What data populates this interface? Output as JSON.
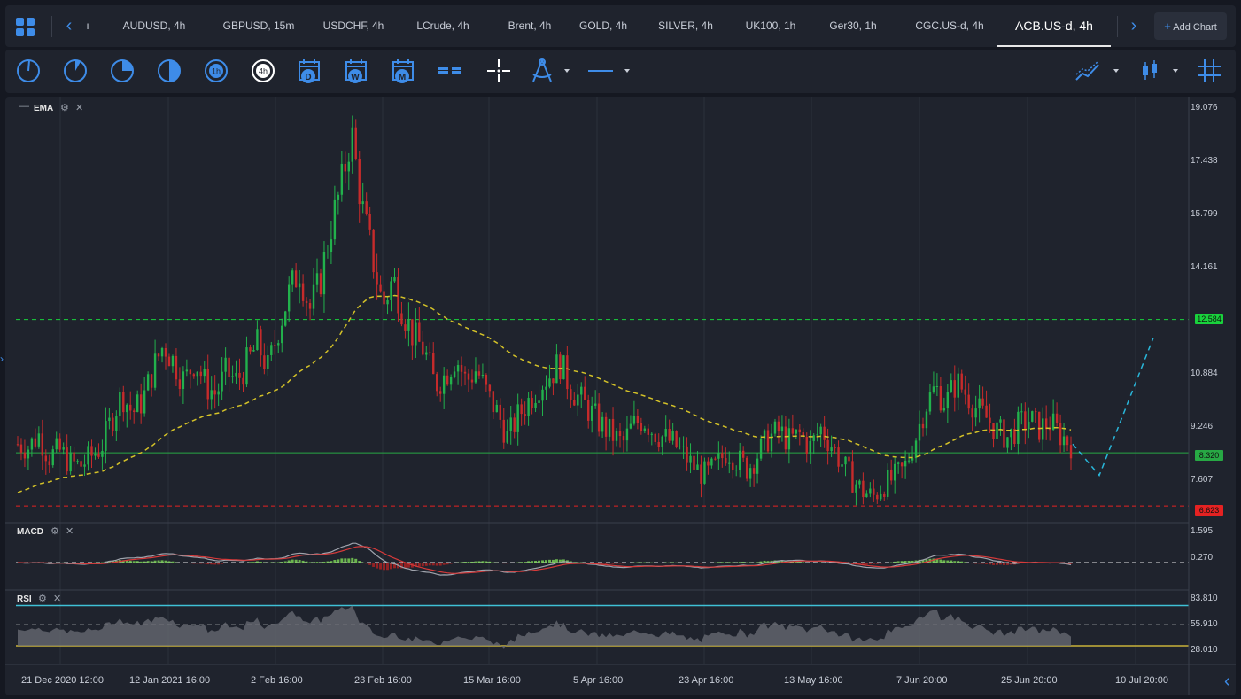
{
  "tabs": {
    "partial": "ı",
    "items": [
      "AUDUSD, 4h",
      "GBPUSD, 15m",
      "USDCHF, 4h",
      "LCrude, 4h",
      "Brent, 4h",
      "GOLD, 4h",
      "SILVER, 4h",
      "UK100, 1h",
      "Ger30, 1h",
      "CGC.US-d, 4h",
      "ACB.US-d, 4h"
    ],
    "active": "ACB.US-d, 4h",
    "add_chart_label": "Add Chart",
    "add_chart_symbol": "+"
  },
  "toolbar": {
    "timeframe_tools": [
      "1m-icon",
      "5m-icon",
      "15m-icon",
      "30m-icon",
      "1h-icon",
      "4h-icon"
    ],
    "labels": {
      "h1": "1h",
      "h4": "4h",
      "day": "D",
      "week": "W",
      "month": "M"
    }
  },
  "indicators": {
    "main": {
      "name": "EMA"
    },
    "macd": {
      "name": "MACD"
    },
    "rsi": {
      "name": "RSI"
    }
  },
  "yaxis": {
    "main": [
      "19.076",
      "17.438",
      "15.799",
      "14.161",
      "10.884",
      "9.246",
      "7.607"
    ],
    "macd": [
      "1.595",
      "0.270"
    ],
    "rsi": [
      "83.810",
      "55.910",
      "28.010"
    ]
  },
  "price_tags": [
    {
      "value": "12.584",
      "color": "#19d23c"
    },
    {
      "value": "8.320",
      "color": "#27a844"
    },
    {
      "value": "6.623",
      "color": "#e52222"
    }
  ],
  "xaxis": [
    "21 Dec 2020 12:00",
    "12 Jan 2021 16:00",
    "2 Feb 16:00",
    "23 Feb 16:00",
    "15 Mar 16:00",
    "5 Apr 16:00",
    "23 Apr 16:00",
    "13 May 16:00",
    "7 Jun 20:00",
    "25 Jun 20:00",
    "10 Jul 20:00"
  ],
  "colors": {
    "up": "#22b14c",
    "down": "#c62b2b",
    "ema": "#d4c228",
    "projection": "#29b6d9",
    "accent": "#3e8ce8"
  },
  "chart_data": {
    "type": "candlestick",
    "title": "ACB.US-d, 4h",
    "ylim": [
      6.2,
      19.4
    ],
    "levels": [
      12.584,
      8.32,
      6.623
    ],
    "close_path": [
      8.6,
      8.5,
      8.9,
      8.2,
      8.4,
      8.0,
      7.9,
      8.2,
      8.5,
      9.4,
      10.2,
      9.6,
      10.0,
      11.0,
      11.8,
      11.2,
      10.6,
      11.3,
      10.5,
      10.2,
      10.9,
      10.6,
      11.2,
      11.8,
      11.0,
      12.3,
      13.4,
      14.2,
      12.9,
      13.8,
      15.5,
      16.8,
      18.6,
      16.2,
      14.6,
      13.0,
      13.9,
      12.8,
      12.0,
      11.6,
      10.5,
      10.8,
      11.4,
      10.6,
      11.0,
      10.2,
      9.6,
      8.8,
      9.5,
      10.0,
      10.5,
      10.8,
      11.2,
      10.4,
      10.0,
      9.6,
      9.2,
      8.9,
      8.6,
      9.2,
      9.4,
      9.0,
      8.8,
      8.6,
      8.2,
      7.8,
      7.6,
      7.9,
      8.4,
      8.1,
      7.8,
      8.3,
      8.8,
      9.0,
      8.7,
      8.9,
      8.5,
      9.1,
      8.6,
      8.0,
      7.5,
      7.1,
      6.9,
      7.3,
      7.5,
      7.8,
      8.7,
      9.8,
      10.4,
      9.9,
      10.6,
      10.2,
      9.7,
      9.4,
      9.0,
      8.8,
      9.2,
      9.4,
      9.1,
      9.3,
      8.9,
      8.6
    ],
    "projection": [
      [
        8.6,
        7.6
      ],
      [
        7.6,
        12.0
      ]
    ]
  }
}
